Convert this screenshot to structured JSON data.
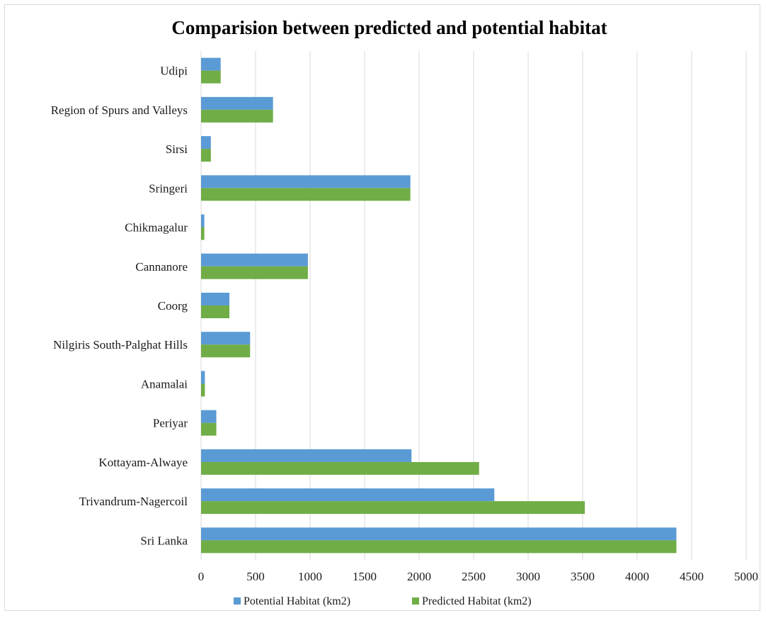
{
  "chart_data": {
    "type": "bar",
    "orientation": "horizontal",
    "title": "Comparision between predicted and potential habitat",
    "xlabel": "",
    "ylabel": "",
    "categories": [
      "Udipi",
      "Region of Spurs and Valleys",
      "Sirsi",
      "Sringeri",
      "Chikmagalur",
      "Cannanore",
      "Coorg",
      "Nilgiris South-Palghat Hills",
      "Anamalai",
      "Periyar",
      "Kottayam-Alwaye",
      "Trivandrum-Nagercoil",
      "Sri Lanka"
    ],
    "series": [
      {
        "name": "Potential Habitat (km2)",
        "color": "#5b9bd5",
        "values": [
          180,
          660,
          90,
          1920,
          30,
          980,
          260,
          450,
          35,
          140,
          1930,
          2690,
          4360
        ]
      },
      {
        "name": "Predicted Habitat (km2)",
        "color": "#70ad47",
        "values": [
          180,
          660,
          90,
          1920,
          30,
          980,
          260,
          450,
          35,
          140,
          2550,
          3520,
          4360
        ]
      }
    ],
    "xlim": [
      0,
      5000
    ],
    "xticks": [
      "0",
      "500",
      "1000",
      "1500",
      "2000",
      "2500",
      "3000",
      "3500",
      "4000",
      "4500",
      "5000"
    ],
    "grid": true,
    "legend": "bottom",
    "gridline_color": "#d9d9d9"
  }
}
